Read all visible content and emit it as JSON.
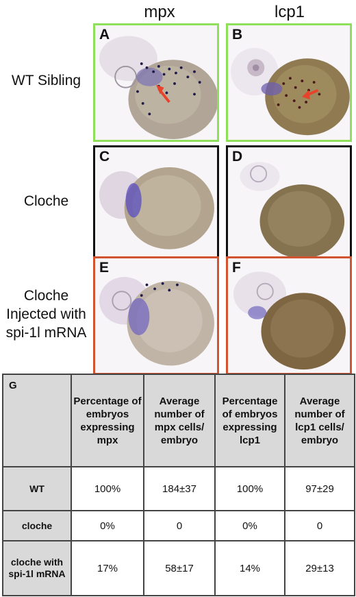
{
  "columns": {
    "left": "mpx",
    "right": "lcp1"
  },
  "rows": {
    "wt": "WT Sibling",
    "cloche": "Cloche",
    "injected": [
      "Cloche",
      "Injected with",
      "spi-1l mRNA"
    ]
  },
  "panels": {
    "a": "A",
    "b": "B",
    "c": "C",
    "d": "D",
    "e": "E",
    "f": "F"
  },
  "colors": {
    "wt_border": "#8ee05a",
    "cloche_border": "#111111",
    "injected_border": "#d2532f",
    "arrow": "#e8432a"
  },
  "table": {
    "label": "G",
    "headers": [
      "Percentage of embryos expressing mpx",
      "Average number of mpx cells/ embryo",
      "Percentage of embryos expressing lcp1",
      "Average number of lcp1 cells/ embryo"
    ],
    "rows": [
      {
        "name": "WT",
        "values": [
          "100%",
          "184±37",
          "100%",
          "97±29"
        ]
      },
      {
        "name": "cloche",
        "values": [
          "0%",
          "0",
          "0%",
          "0"
        ]
      },
      {
        "name": "cloche with spi-1l mRNA",
        "values": [
          "17%",
          "58±17",
          "14%",
          "29±13"
        ]
      }
    ]
  }
}
